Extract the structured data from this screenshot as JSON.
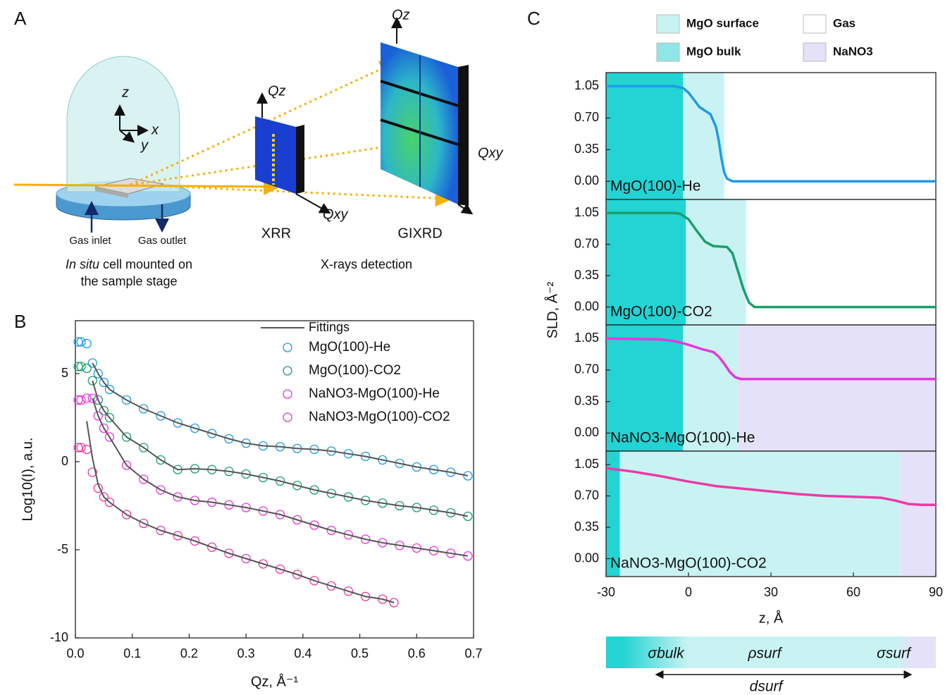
{
  "panels": [
    "A",
    "B",
    "C"
  ],
  "diagram": {
    "axes": [
      "z",
      "x",
      "y"
    ],
    "gas_inlet": "Gas inlet",
    "gas_outlet": "Gas outlet",
    "cell_caption": {
      "italic": "In situ",
      "rest": "cell mounted on",
      "line2": "the sample stage"
    },
    "xrr": {
      "qz": "Qz",
      "qxy": "Qxy",
      "label": "XRR"
    },
    "gixrd": {
      "qz": "Qz",
      "qxy": "Qxy",
      "label": "GIXRD"
    },
    "detection": "X-rays detection"
  },
  "schematic": {
    "sigma_bulk": "σbulk",
    "rho_surf": "ρsurf",
    "sigma_surf": "σsurf",
    "d_surf": "dsurf"
  },
  "chart_data": [
    {
      "type": "scatter",
      "xlabel": "Qz, Å⁻¹",
      "ylabel": "Log10(I), a.u.",
      "xlim": [
        0,
        0.7
      ],
      "ylim": [
        -10,
        8
      ],
      "xticks": [
        {
          "value": 0,
          "label": "0.0"
        },
        0.1,
        0.2,
        0.3,
        0.4,
        0.5,
        0.6,
        0.7
      ],
      "yticks": [
        -10,
        -5,
        0,
        5
      ],
      "fit_name": "Fittings",
      "fit_color": "#555555",
      "series": [
        {
          "name": "MgO(100)-He",
          "color": "#1e9be8",
          "x": [
            0.005,
            0.01,
            0.02,
            0.03,
            0.04,
            0.05,
            0.06,
            0.09,
            0.12,
            0.15,
            0.18,
            0.21,
            0.24,
            0.27,
            0.3,
            0.33,
            0.36,
            0.39,
            0.42,
            0.45,
            0.48,
            0.51,
            0.54,
            0.57,
            0.6,
            0.63,
            0.66,
            0.69
          ],
          "values": [
            6.8,
            6.8,
            6.7,
            5.6,
            5.0,
            4.5,
            4.1,
            3.5,
            3.0,
            2.6,
            2.2,
            1.9,
            1.6,
            1.3,
            1.05,
            0.9,
            0.85,
            0.75,
            0.7,
            0.6,
            0.45,
            0.3,
            0.1,
            -0.1,
            -0.3,
            -0.45,
            -0.6,
            -0.8
          ],
          "fit": [
            null,
            null,
            null,
            5.6,
            5.0,
            4.5,
            4.1,
            3.5,
            3.0,
            2.6,
            2.2,
            1.9,
            1.6,
            1.3,
            1.05,
            0.9,
            0.85,
            0.75,
            0.7,
            0.6,
            0.45,
            0.3,
            0.1,
            -0.1,
            -0.3,
            -0.45,
            -0.6,
            -0.8
          ]
        },
        {
          "name": "MgO(100)-CO2",
          "color": "#19a06a",
          "x": [
            0.005,
            0.01,
            0.02,
            0.03,
            0.04,
            0.05,
            0.06,
            0.09,
            0.12,
            0.15,
            0.18,
            0.21,
            0.24,
            0.27,
            0.3,
            0.33,
            0.36,
            0.39,
            0.42,
            0.45,
            0.48,
            0.51,
            0.54,
            0.57,
            0.6,
            0.63,
            0.66,
            0.69
          ],
          "values": [
            5.4,
            5.4,
            5.3,
            4.6,
            3.5,
            2.9,
            2.5,
            1.4,
            0.8,
            0.1,
            -0.45,
            -0.4,
            -0.45,
            -0.55,
            -0.7,
            -0.9,
            -1.1,
            -1.35,
            -1.6,
            -1.8,
            -2.0,
            -2.2,
            -2.35,
            -2.5,
            -2.6,
            -2.75,
            -2.9,
            -3.1
          ],
          "fit": [
            null,
            null,
            null,
            4.6,
            3.5,
            2.9,
            2.5,
            1.4,
            0.8,
            0.1,
            -0.45,
            -0.4,
            -0.45,
            -0.55,
            -0.7,
            -0.9,
            -1.1,
            -1.35,
            -1.6,
            -1.8,
            -2.0,
            -2.2,
            -2.35,
            -2.5,
            -2.6,
            -2.75,
            -2.9,
            -3.1
          ]
        },
        {
          "name": "NaNO3-MgO(100)-He",
          "color": "#e935e0",
          "x": [
            0.005,
            0.01,
            0.02,
            0.03,
            0.04,
            0.05,
            0.06,
            0.09,
            0.12,
            0.15,
            0.18,
            0.21,
            0.24,
            0.27,
            0.3,
            0.33,
            0.36,
            0.39,
            0.42,
            0.45,
            0.48,
            0.51,
            0.54,
            0.57,
            0.6,
            0.63,
            0.66,
            0.69
          ],
          "values": [
            3.5,
            3.5,
            3.6,
            3.6,
            2.6,
            1.9,
            1.4,
            -0.2,
            -1.0,
            -1.6,
            -2.0,
            -2.2,
            -2.3,
            -2.45,
            -2.6,
            -2.8,
            -3.0,
            -3.3,
            -3.6,
            -3.9,
            -4.15,
            -4.4,
            -4.6,
            -4.75,
            -4.9,
            -5.05,
            -5.2,
            -5.35
          ],
          "fit": [
            null,
            null,
            null,
            3.6,
            2.6,
            1.9,
            1.4,
            -0.2,
            -1.0,
            -1.6,
            -2.0,
            -2.2,
            -2.3,
            -2.45,
            -2.6,
            -2.8,
            -3.0,
            -3.3,
            -3.6,
            -3.9,
            -4.15,
            -4.4,
            -4.6,
            -4.75,
            -4.9,
            -5.05,
            -5.2,
            -5.35
          ]
        },
        {
          "name": "NaNO3-MgO(100)-CO2",
          "color": "#ec3aa5",
          "x": [
            0.005,
            0.01,
            0.02,
            0.03,
            0.04,
            0.05,
            0.06,
            0.09,
            0.12,
            0.15,
            0.18,
            0.21,
            0.24,
            0.27,
            0.3,
            0.33,
            0.36,
            0.39,
            0.42,
            0.45,
            0.48,
            0.51,
            0.54,
            0.56
          ],
          "values": [
            0.8,
            0.8,
            0.7,
            -0.6,
            -1.5,
            -2.0,
            -2.3,
            -3.0,
            -3.5,
            -3.9,
            -4.2,
            -4.5,
            -4.85,
            -5.2,
            -5.5,
            -5.8,
            -6.1,
            -6.4,
            -6.75,
            -7.05,
            -7.35,
            -7.65,
            -7.8,
            -8.0
          ],
          "fit": [
            null,
            null,
            2.3,
            0.2,
            -1.3,
            -2.0,
            -2.3,
            -3.0,
            -3.5,
            -3.9,
            -4.2,
            -4.5,
            -4.85,
            -5.2,
            -5.5,
            -5.8,
            -6.1,
            -6.4,
            -6.75,
            -7.05,
            -7.35,
            -7.65,
            -7.8,
            -8.0
          ]
        }
      ]
    },
    {
      "type": "line",
      "annotation": "MgO(100)-He",
      "ylabel": "SLD, Å⁻²",
      "legend": [
        {
          "name": "MgO surface",
          "color": "#c9f3f3"
        },
        {
          "name": "Gas",
          "color": "#ffffff"
        },
        {
          "name": "MgO bulk",
          "color": "#8ee6e6"
        },
        {
          "name": "NaNO3",
          "color": "#e4e1f8"
        }
      ],
      "xlim": [
        -30,
        90
      ],
      "ylim": [
        -0.2,
        1.2
      ],
      "yticks": [
        {
          "value": 0,
          "label": "0.00"
        },
        0.35,
        {
          "value": 0.7,
          "label": "0.70"
        },
        1.05
      ],
      "color": "#1e9be8",
      "regions": [
        {
          "xlim": [
            -30,
            -2
          ],
          "color": "#22d4d4"
        },
        {
          "xlim": [
            -2,
            13
          ],
          "color": "#c9f3f3"
        },
        {
          "xlim": [
            13,
            90
          ],
          "color": "#ffffff"
        }
      ],
      "x": [
        -30,
        -10,
        -5,
        -2,
        0,
        2,
        4,
        6,
        8,
        10,
        11,
        12,
        13,
        14,
        16,
        90
      ],
      "values": [
        1.05,
        1.05,
        1.05,
        1.03,
        0.98,
        0.9,
        0.82,
        0.78,
        0.74,
        0.6,
        0.45,
        0.25,
        0.1,
        0.03,
        0.0,
        0.0
      ]
    },
    {
      "type": "line",
      "annotation": "MgO(100)-CO2",
      "xlim": [
        -30,
        90
      ],
      "ylim": [
        -0.2,
        1.2
      ],
      "yticks": [
        {
          "value": 0,
          "label": "0.00"
        },
        0.35,
        {
          "value": 0.7,
          "label": "0.70"
        },
        1.05
      ],
      "color": "#19a06a",
      "regions": [
        {
          "xlim": [
            -30,
            -1
          ],
          "color": "#22d4d4"
        },
        {
          "xlim": [
            -1,
            21
          ],
          "color": "#c9f3f3"
        },
        {
          "xlim": [
            21,
            90
          ],
          "color": "#ffffff"
        }
      ],
      "x": [
        -30,
        -5,
        -3,
        0,
        3,
        6,
        9,
        14,
        16,
        18,
        20,
        22,
        24,
        90
      ],
      "values": [
        1.05,
        1.05,
        1.04,
        0.98,
        0.85,
        0.73,
        0.68,
        0.67,
        0.6,
        0.4,
        0.2,
        0.05,
        0.0,
        0.0
      ]
    },
    {
      "type": "line",
      "annotation": "NaNO3-MgO(100)-He",
      "xlim": [
        -30,
        90
      ],
      "ylim": [
        -0.2,
        1.2
      ],
      "yticks": [
        {
          "value": 0,
          "label": "0.00"
        },
        0.35,
        {
          "value": 0.7,
          "label": "0.70"
        },
        1.05
      ],
      "color": "#e935e0",
      "regions": [
        {
          "xlim": [
            -30,
            -2
          ],
          "color": "#22d4d4"
        },
        {
          "xlim": [
            -2,
            18
          ],
          "color": "#c9f3f3"
        },
        {
          "xlim": [
            18,
            90
          ],
          "color": "#e4e1f8"
        }
      ],
      "x": [
        -30,
        -10,
        -5,
        0,
        5,
        9,
        11,
        13,
        15,
        17,
        19,
        90
      ],
      "values": [
        1.05,
        1.04,
        1.02,
        0.98,
        0.93,
        0.9,
        0.85,
        0.77,
        0.68,
        0.62,
        0.6,
        0.6
      ]
    },
    {
      "type": "line",
      "annotation": "NaNO3-MgO(100)-CO2",
      "xlabel": "z, Å",
      "xlim": [
        -30,
        90
      ],
      "ylim": [
        -0.2,
        1.2
      ],
      "xticks": [
        -30,
        0,
        30,
        60,
        90
      ],
      "yticks": [
        {
          "value": 0,
          "label": "0.00"
        },
        0.35,
        {
          "value": 0.7,
          "label": "0.70"
        },
        1.05
      ],
      "color": "#ec3aa5",
      "regions": [
        {
          "xlim": [
            -30,
            -25
          ],
          "color": "#22d4d4"
        },
        {
          "xlim": [
            -25,
            77
          ],
          "color": "#c9f3f3"
        },
        {
          "xlim": [
            77,
            90
          ],
          "color": "#e4e1f8"
        }
      ],
      "x": [
        -30,
        -20,
        -10,
        0,
        10,
        20,
        30,
        40,
        50,
        60,
        70,
        75,
        80,
        85,
        90
      ],
      "values": [
        1.01,
        0.97,
        0.92,
        0.86,
        0.81,
        0.78,
        0.75,
        0.72,
        0.7,
        0.69,
        0.68,
        0.65,
        0.61,
        0.6,
        0.6
      ]
    }
  ]
}
